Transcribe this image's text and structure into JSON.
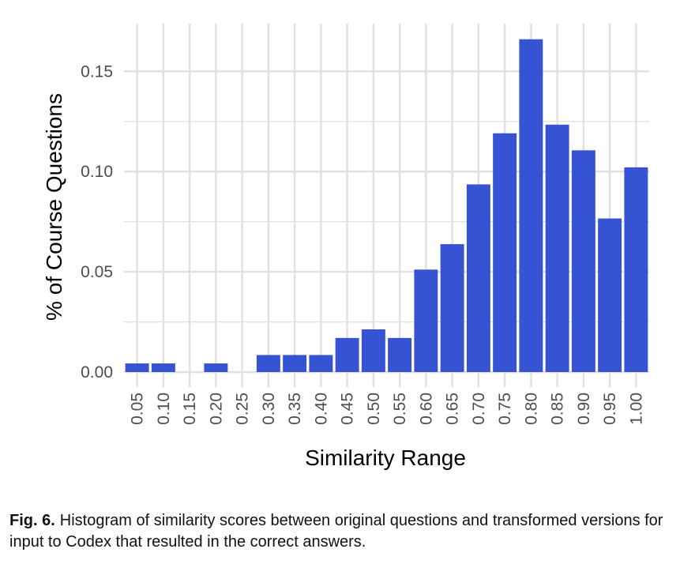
{
  "chart_data": {
    "type": "bar",
    "title": "",
    "xlabel": "Similarity Range",
    "ylabel": "% of Course Questions",
    "categories": [
      "0.05",
      "0.10",
      "0.15",
      "0.20",
      "0.25",
      "0.30",
      "0.35",
      "0.40",
      "0.45",
      "0.50",
      "0.55",
      "0.60",
      "0.65",
      "0.70",
      "0.75",
      "0.80",
      "0.85",
      "0.90",
      "0.95",
      "1.00"
    ],
    "values": [
      0.0043,
      0.0043,
      0,
      0.0043,
      0,
      0.0085,
      0.0085,
      0.0085,
      0.017,
      0.0213,
      0.017,
      0.0511,
      0.0638,
      0.0936,
      0.1191,
      0.166,
      0.1234,
      0.1106,
      0.0766,
      0.1021
    ],
    "yticks": [
      "0.00",
      "0.05",
      "0.10",
      "0.15"
    ],
    "ylim": [
      0,
      0.175
    ],
    "grid": true,
    "bar_color": "#3653d3",
    "grid_color": "#e0e0e0"
  },
  "caption": {
    "label": "Fig. 6.",
    "text": "Histogram of similarity scores between original questions and transformed versions for input to Codex that resulted in the correct answers."
  }
}
